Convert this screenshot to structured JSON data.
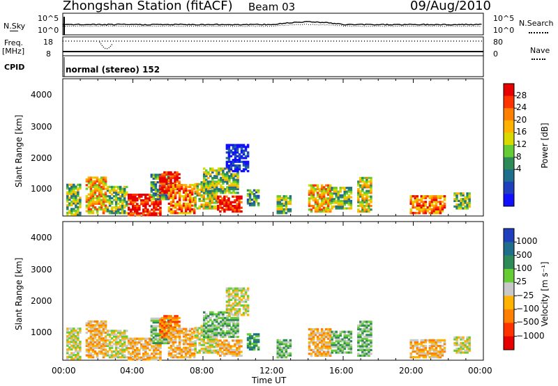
{
  "header": {
    "station": "Zhongshan Station (fitACF)",
    "beam": "Beam 03",
    "date": "09/Aug/2010"
  },
  "top_panels": {
    "nsky_label": "N.Sky",
    "nsky_ticks": [
      "10^5",
      "10^0"
    ],
    "nsearch_label": "N.Search",
    "nsearch_ticks": [
      "10^5",
      "10^0"
    ],
    "freq_label_1": "Freq.",
    "freq_label_2": "[MHz]",
    "freq_ticks": [
      "18",
      "8"
    ],
    "nave_label": "Nave",
    "nave_ticks": [
      "80",
      "0"
    ],
    "cpid_label": "CPID",
    "cpid_text": "normal (stereo) 152"
  },
  "power_panel": {
    "ylabel": "Slant Range [km]",
    "yticks": [
      "4000",
      "3000",
      "2000",
      "1000"
    ],
    "colorbar_label": "Power [dB]",
    "colorbar_ticks": [
      "28",
      "24",
      "20",
      "16",
      "12",
      "8",
      "4"
    ],
    "colors": [
      "#e60000",
      "#ff3300",
      "#ff8000",
      "#ffb300",
      "#d9d900",
      "#66cc33",
      "#2e8b57",
      "#1e6e8c",
      "#1f3fbf",
      "#1010ff"
    ]
  },
  "velocity_panel": {
    "ylabel": "Slant Range [km]",
    "yticks": [
      "4000",
      "3000",
      "2000",
      "1000"
    ],
    "colorbar_label": "Velocity [m s⁻¹]",
    "colorbar_ticks": [
      "1000",
      "500",
      "100",
      "25",
      "−25",
      "−100",
      "−500",
      "−1000"
    ],
    "colors": [
      "#1f3fbf",
      "#1e6e8c",
      "#2e8b57",
      "#66cc33",
      "#c8c8c8",
      "#ffb300",
      "#ff8000",
      "#ff3300",
      "#e60000"
    ]
  },
  "xaxis": {
    "title": "Time UT",
    "ticks": [
      "00:00",
      "04:00",
      "08:00",
      "12:00",
      "16:00",
      "20:00",
      "00:00"
    ]
  },
  "chart_data": {
    "type": "heatmap",
    "title": "Zhongshan Station (fitACF)  Beam 03  09/Aug/2010",
    "xlabel": "Time UT",
    "ylabel": "Slant Range [km]",
    "xlim": [
      0,
      24
    ],
    "ylim": [
      180,
      4600
    ],
    "power_scale_db": [
      4,
      28
    ],
    "velocity_scale": [
      -1000,
      1000
    ],
    "echo_regions": [
      {
        "t_start": 0.2,
        "t_end": 1.0,
        "r_min": 200,
        "r_max": 1200,
        "power_db": 16,
        "velocity": 100
      },
      {
        "t_start": 1.3,
        "t_end": 2.5,
        "r_min": 250,
        "r_max": 1400,
        "power_db": 20,
        "velocity": -200
      },
      {
        "t_start": 2.5,
        "t_end": 3.6,
        "r_min": 250,
        "r_max": 1100,
        "power_db": 14,
        "velocity": 50
      },
      {
        "t_start": 3.7,
        "t_end": 5.6,
        "r_min": 180,
        "r_max": 900,
        "power_db": 26,
        "velocity": -300
      },
      {
        "t_start": 5.0,
        "t_end": 6.0,
        "r_min": 700,
        "r_max": 1500,
        "power_db": 12,
        "velocity": 200
      },
      {
        "t_start": 5.5,
        "t_end": 6.7,
        "r_min": 900,
        "r_max": 1600,
        "power_db": 26,
        "velocity": -500
      },
      {
        "t_start": 6.0,
        "t_end": 7.5,
        "r_min": 250,
        "r_max": 1200,
        "power_db": 22,
        "velocity": -250
      },
      {
        "t_start": 7.5,
        "t_end": 8.8,
        "r_min": 400,
        "r_max": 1300,
        "power_db": 18,
        "velocity": 100
      },
      {
        "t_start": 8.0,
        "t_end": 10.0,
        "r_min": 900,
        "r_max": 1700,
        "power_db": 14,
        "velocity": 300
      },
      {
        "t_start": 8.8,
        "t_end": 10.2,
        "r_min": 300,
        "r_max": 800,
        "power_db": 28,
        "velocity": -200
      },
      {
        "t_start": 9.3,
        "t_end": 10.5,
        "r_min": 1600,
        "r_max": 2500,
        "power_db": 6,
        "velocity": 0
      },
      {
        "t_start": 10.5,
        "t_end": 11.2,
        "r_min": 500,
        "r_max": 1000,
        "power_db": 12,
        "velocity": 400
      },
      {
        "t_start": 12.2,
        "t_end": 13.0,
        "r_min": 250,
        "r_max": 800,
        "power_db": 14,
        "velocity": 200
      },
      {
        "t_start": 14.0,
        "t_end": 15.3,
        "r_min": 300,
        "r_max": 1200,
        "power_db": 20,
        "velocity": -200
      },
      {
        "t_start": 15.3,
        "t_end": 16.5,
        "r_min": 400,
        "r_max": 1100,
        "power_db": 14,
        "velocity": 150
      },
      {
        "t_start": 16.8,
        "t_end": 17.6,
        "r_min": 300,
        "r_max": 1400,
        "power_db": 18,
        "velocity": 200
      },
      {
        "t_start": 19.8,
        "t_end": 21.8,
        "r_min": 250,
        "r_max": 800,
        "power_db": 22,
        "velocity": -250
      },
      {
        "t_start": 22.3,
        "t_end": 23.2,
        "r_min": 400,
        "r_max": 900,
        "power_db": 14,
        "velocity": 100
      }
    ]
  }
}
